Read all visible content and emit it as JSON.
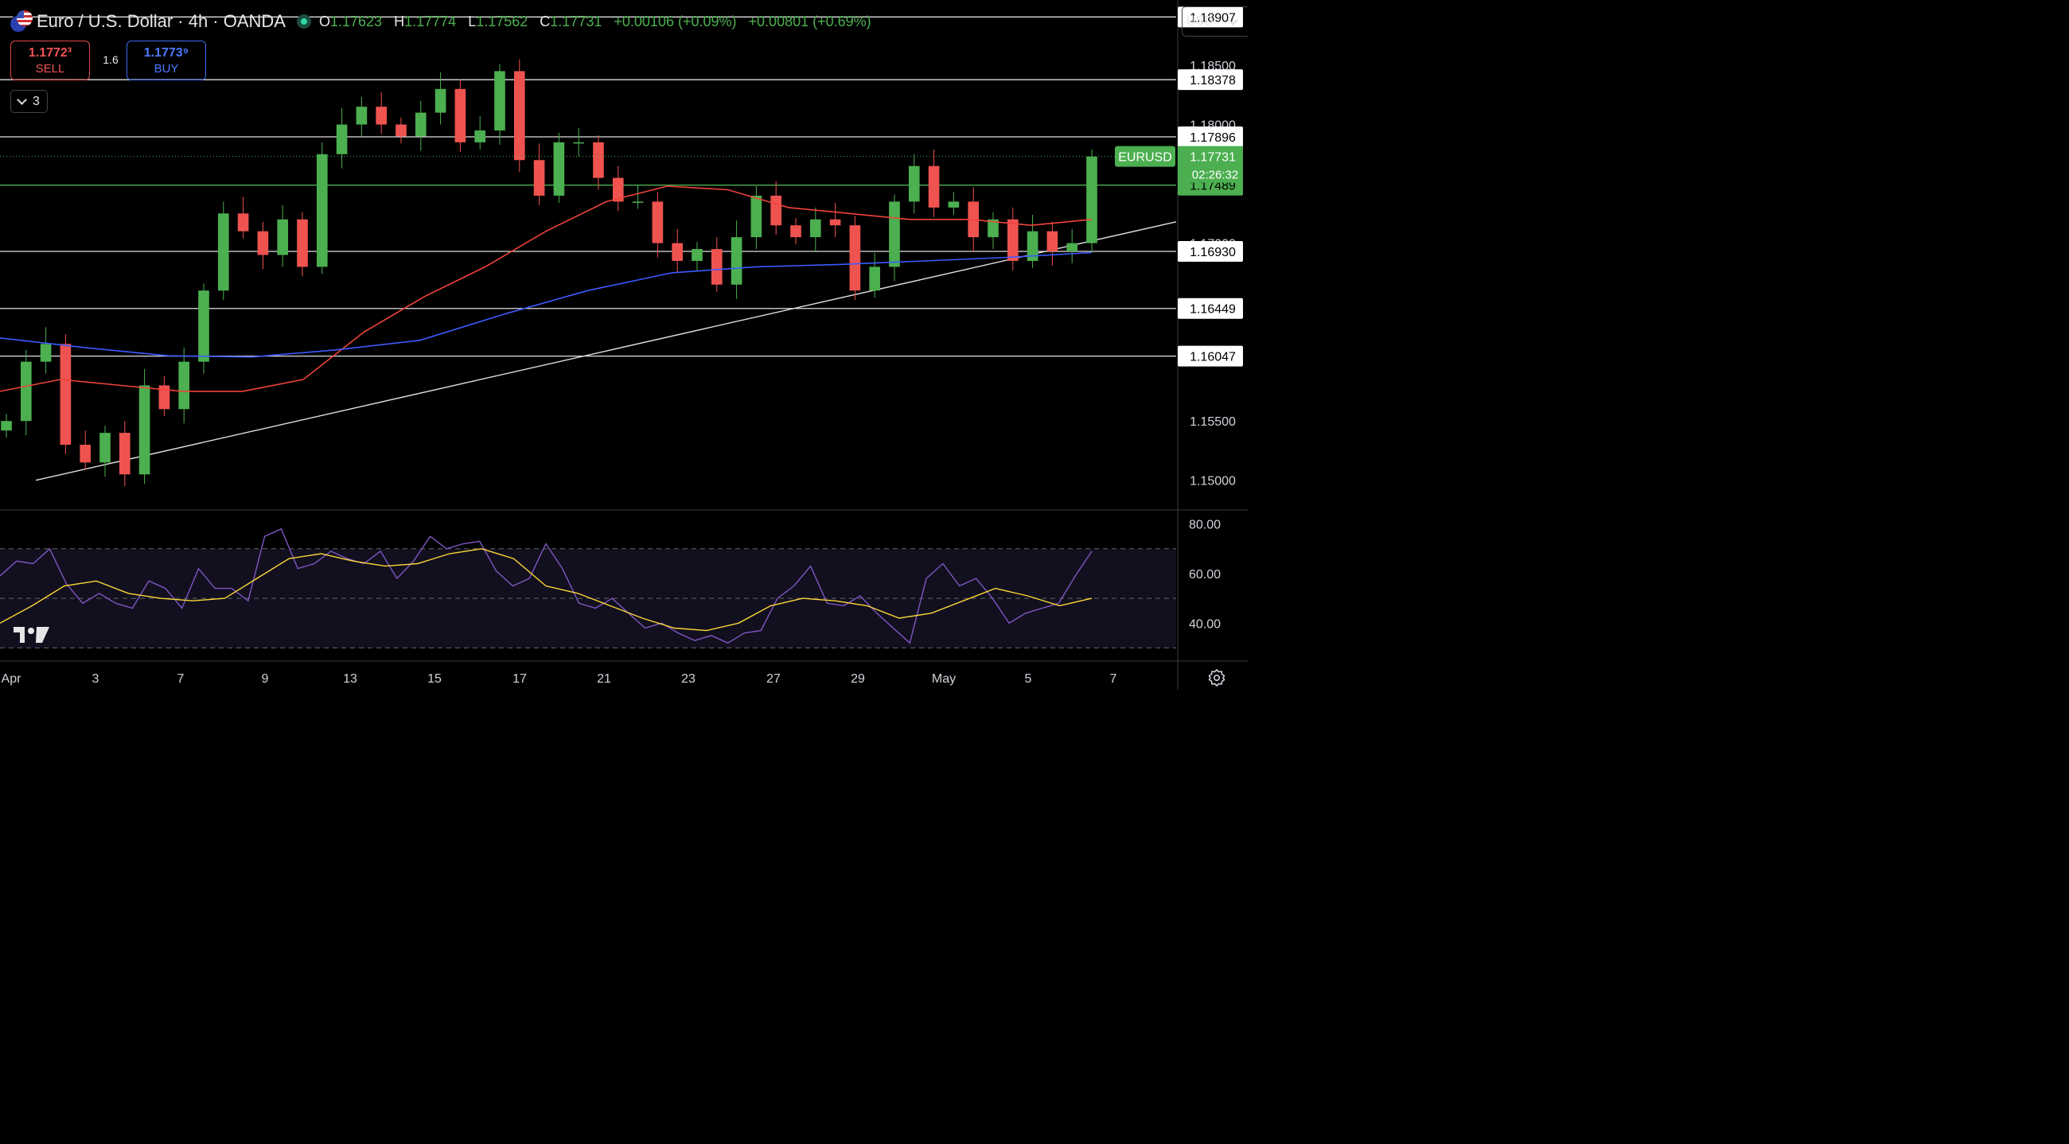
{
  "header": {
    "title": "Euro / U.S. Dollar · 4h · OANDA",
    "open_label": "O",
    "open": "1.17623",
    "high_label": "H",
    "high": "1.17774",
    "low_label": "L",
    "low": "1.17562",
    "close_label": "C",
    "close": "1.17731",
    "change": "+0.00106 (+0.09%)",
    "change2": "+0.00801 (+0.69%)"
  },
  "trade": {
    "sell_price": "1.1772³",
    "sell_label": "SELL",
    "spread": "1.6",
    "buy_price": "1.1773⁹",
    "buy_label": "BUY"
  },
  "indicators_toggle": {
    "count": "3"
  },
  "currency_select": {
    "value": "USD"
  },
  "colors": {
    "background": "#000000",
    "up": "#4caf50",
    "down": "#ef5350",
    "ma_fast": "#f0433a",
    "ma_slow": "#3d5afe",
    "rsi": "#7e57c2",
    "rsi_ma": "#fdd835",
    "last_price": "#4caf50"
  },
  "chart_data": {
    "type": "candlestick",
    "symbol": "EURUSD",
    "interval": "4h",
    "price_axis": {
      "ylim": [
        1.1475,
        1.1905
      ],
      "ticks": [
        "1.18500",
        "1.18000",
        "1.17500",
        "1.17000",
        "1.15500",
        "1.15000"
      ]
    },
    "x_axis": {
      "tick_labels": [
        "Apr",
        "3",
        "7",
        "9",
        "13",
        "15",
        "17",
        "21",
        "23",
        "27",
        "29",
        "May",
        "5",
        "7"
      ]
    },
    "horizontal_lines": [
      1.18907,
      1.18378,
      1.17896,
      1.17489,
      1.1693,
      1.16449,
      1.16047
    ],
    "horizontal_line_labels": [
      "1.18907",
      "1.18378",
      "1.17896",
      "1.17489",
      "1.16930",
      "1.16449",
      "1.16047"
    ],
    "last_price": {
      "symbol_label": "EURUSD",
      "value": "1.17731",
      "countdown": "02:26:32"
    },
    "candle_key_closes": [
      1.155,
      1.16,
      1.1615,
      1.153,
      1.1515,
      1.154,
      1.1505,
      1.158,
      1.156,
      1.16,
      1.166,
      1.1725,
      1.171,
      1.169,
      1.172,
      1.168,
      1.1775,
      1.18,
      1.1815,
      1.18,
      1.179,
      1.181,
      1.183,
      1.1785,
      1.1795,
      1.1845,
      1.177,
      1.174,
      1.1785,
      1.1785,
      1.1755,
      1.1735,
      1.1735,
      1.17,
      1.1685,
      1.1695,
      1.1665,
      1.1705,
      1.174,
      1.1715,
      1.1705,
      1.172,
      1.1715,
      1.166,
      1.168,
      1.1735,
      1.1765,
      1.173,
      1.1735,
      1.1705,
      1.172,
      1.1685,
      1.171,
      1.1693,
      1.17,
      1.1773
    ],
    "trendline": {
      "from": {
        "x": "Apr 1",
        "y": 1.15
      },
      "to": {
        "x": "May 7",
        "y": 1.171
      }
    },
    "moving_averages": [
      {
        "color": "red",
        "values": [
          1.1575,
          1.1585,
          1.158,
          1.1575,
          1.1575,
          1.1585,
          1.1625,
          1.1655,
          1.168,
          1.171,
          1.1735,
          1.1748,
          1.1745,
          1.173,
          1.1725,
          1.172,
          1.172,
          1.1715,
          1.172
        ]
      },
      {
        "color": "blue",
        "values": [
          1.162,
          1.1612,
          1.1605,
          1.1604,
          1.161,
          1.1618,
          1.164,
          1.166,
          1.1675,
          1.168,
          1.1682,
          1.1685,
          1.1688,
          1.1692
        ]
      }
    ],
    "rsi": {
      "ylim": [
        25,
        85
      ],
      "ticks": [
        "80.00",
        "60.00",
        "40.00"
      ],
      "bands": [
        70,
        50,
        30
      ],
      "values": [
        59,
        65,
        64,
        70,
        56,
        48,
        52,
        48,
        46,
        57,
        54,
        46,
        62,
        54,
        54,
        49,
        75,
        78,
        62,
        64,
        69,
        66,
        64,
        69,
        58,
        65,
        75,
        70,
        72,
        73,
        61,
        55,
        58,
        72,
        62,
        48,
        46,
        50,
        44,
        38,
        40,
        36,
        33,
        35,
        32,
        36,
        37,
        50,
        55,
        63,
        48,
        47,
        51,
        44,
        38,
        32,
        58,
        64,
        55,
        58,
        50,
        40,
        44,
        46,
        48,
        59,
        69
      ],
      "ma_values": [
        40,
        47,
        55,
        57,
        52,
        50,
        49,
        50,
        58,
        66,
        68,
        65,
        63,
        64,
        68,
        70,
        66,
        55,
        52,
        47,
        42,
        38,
        37,
        40,
        47,
        50,
        49,
        47,
        42,
        44,
        49,
        54,
        51,
        47,
        50
      ]
    }
  }
}
